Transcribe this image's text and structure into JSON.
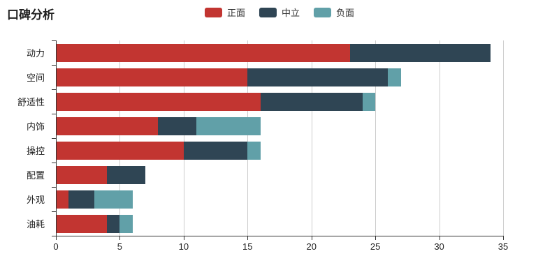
{
  "title": "口碑分析",
  "legend": {
    "items": [
      {
        "label": "正面",
        "color": "#c23531"
      },
      {
        "label": "中立",
        "color": "#2f4554"
      },
      {
        "label": "负面",
        "color": "#61a0a8"
      }
    ]
  },
  "colors": {
    "positive": "#c23531",
    "neutral": "#2f4554",
    "negative": "#61a0a8",
    "gridline": "#cccccc",
    "axis": "#333333",
    "text": "#222222",
    "background": "#ffffff"
  },
  "chart_data": {
    "type": "bar",
    "orientation": "horizontal",
    "stacked": true,
    "title": "口碑分析",
    "xlabel": "",
    "ylabel": "",
    "categories": [
      "动力",
      "空间",
      "舒适性",
      "内饰",
      "操控",
      "配置",
      "外观",
      "油耗"
    ],
    "series": [
      {
        "name": "正面",
        "color": "#c23531",
        "values": [
          23,
          15,
          16,
          8,
          10,
          4,
          1,
          4
        ]
      },
      {
        "name": "中立",
        "color": "#2f4554",
        "values": [
          11,
          11,
          8,
          3,
          5,
          3,
          2,
          1
        ]
      },
      {
        "name": "负面",
        "color": "#61a0a8",
        "values": [
          0,
          1,
          1,
          5,
          1,
          0,
          3,
          1
        ]
      }
    ],
    "totals": [
      34,
      27,
      25,
      16,
      16,
      7,
      6,
      6
    ],
    "xlim": [
      0,
      35
    ],
    "xticks": [
      0,
      5,
      10,
      15,
      20,
      25,
      30,
      35
    ],
    "grid": true,
    "legend_position": "top-center"
  }
}
